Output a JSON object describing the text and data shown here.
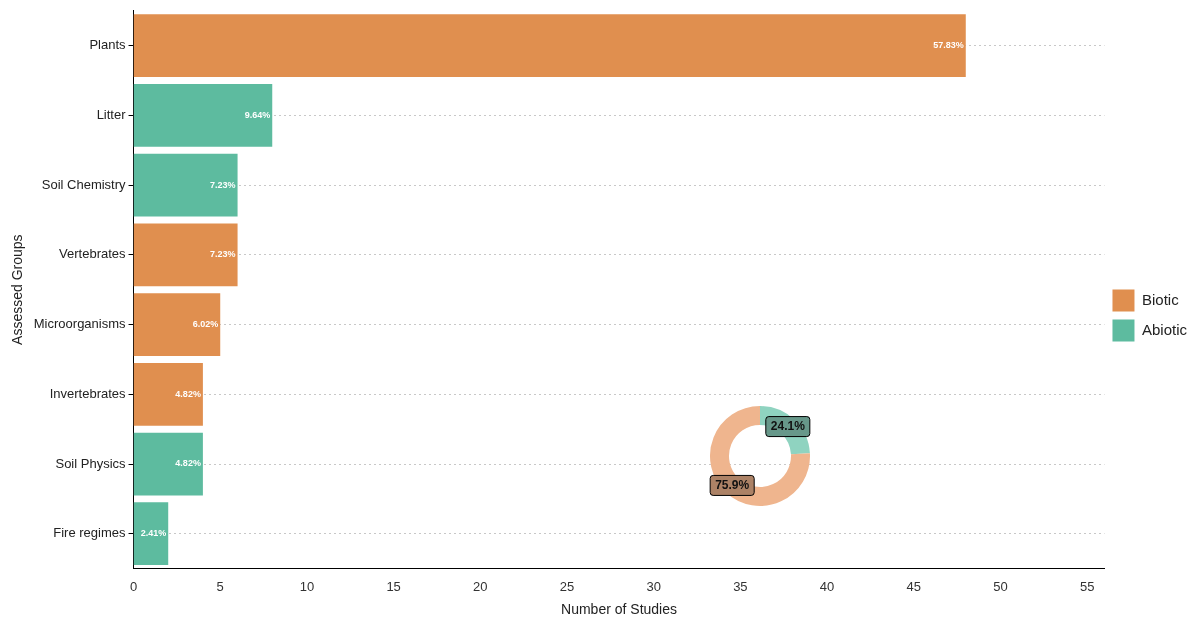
{
  "chart_data": [
    {
      "type": "bar",
      "orientation": "horizontal",
      "stacked": true,
      "xlabel": "Number of Studies",
      "ylabel": "Assessed Groups",
      "categories": [
        "Plants",
        "Litter",
        "Soil Chemistry",
        "Vertebrates",
        "Microorganisms",
        "Invertebrates",
        "Soil Physics",
        "Fire regimes"
      ],
      "series": [
        {
          "name": "Biotic",
          "color": "#e08f4f",
          "values": [
            48,
            null,
            null,
            6,
            5,
            4,
            null,
            null
          ]
        },
        {
          "name": "Abiotic",
          "color": "#5dbb9f",
          "values": [
            null,
            8,
            6,
            null,
            null,
            null,
            4,
            2
          ]
        }
      ],
      "annotations": [
        {
          "text": "57.83%",
          "x": 48,
          "y": "Plants"
        },
        {
          "text": "9.64%",
          "x": 8,
          "y": "Litter"
        },
        {
          "text": "7.23%",
          "x": 6,
          "y": "Soil Chemistry"
        },
        {
          "text": "7.23%",
          "x": 6,
          "y": "Vertebrates"
        },
        {
          "text": "6.02%",
          "x": 5,
          "y": "Microorganisms"
        },
        {
          "text": "4.82%",
          "x": 4,
          "y": "Invertebrates"
        },
        {
          "text": "4.82%",
          "x": 4,
          "y": "Soil Physics"
        },
        {
          "text": "2.41%",
          "x": 2,
          "y": "Fire regimes"
        }
      ],
      "xlim": [
        0,
        56
      ],
      "xticks": [
        0,
        5,
        10,
        15,
        20,
        25,
        30,
        35,
        40,
        45,
        50,
        55
      ],
      "grid": "y",
      "legend": "right"
    },
    {
      "type": "donut",
      "categories": [
        null,
        null
      ],
      "values": [
        24.1,
        75.9
      ],
      "colors": [
        "#8fd3c0",
        "#efb58e"
      ],
      "value_labels": [
        "24.1%",
        "75.9%"
      ]
    }
  ]
}
